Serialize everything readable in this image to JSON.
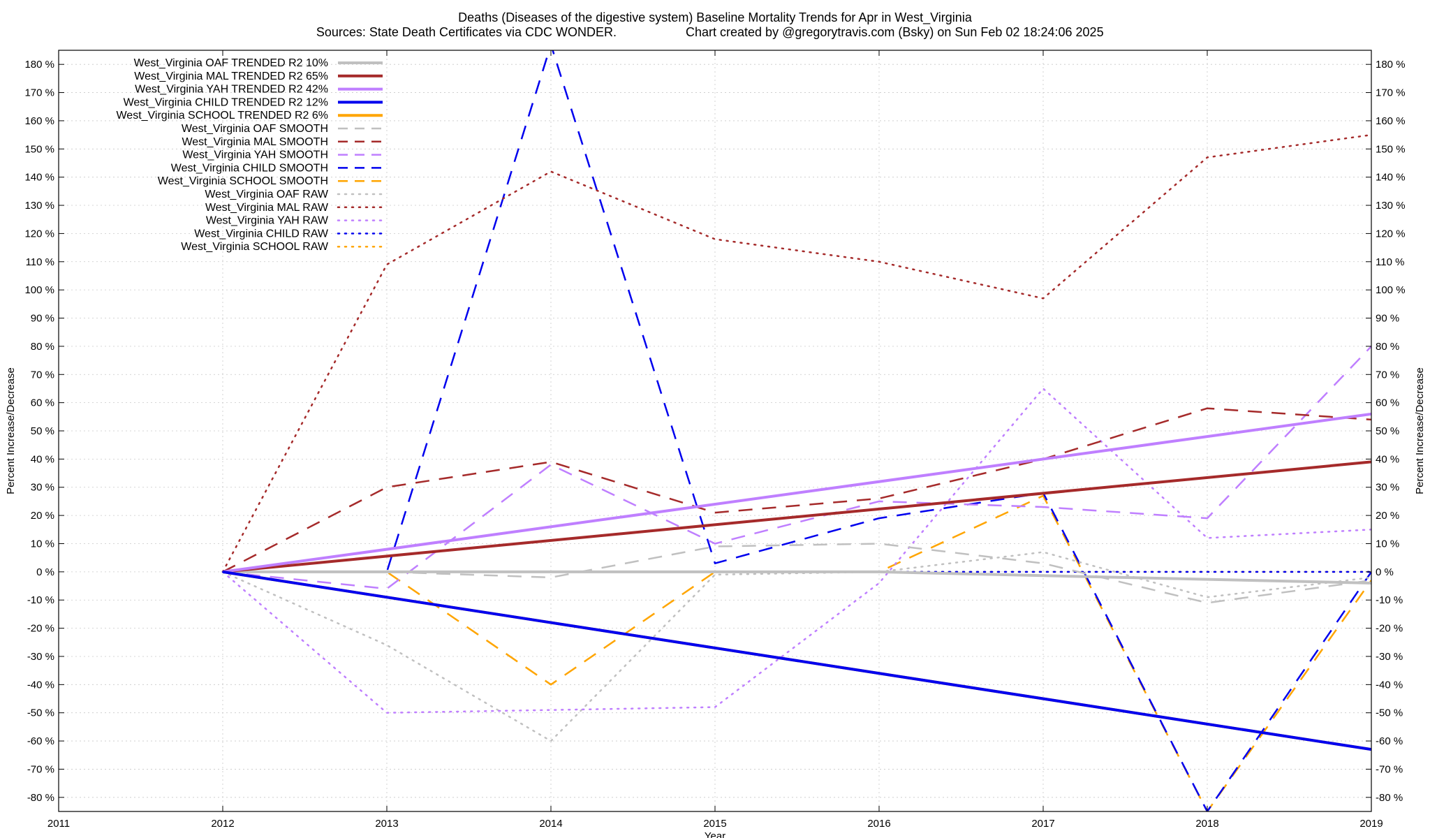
{
  "chart_data": {
    "type": "line",
    "title": "Deaths (Diseases of the digestive system)  Baseline Mortality Trends for Apr in West_Virginia",
    "subtitle_left": "Sources: State Death Certificates via CDC WONDER.",
    "subtitle_right": "Chart created by @gregorytravis.com (Bsky) on Sun Feb 02 18:24:06 2025",
    "xlabel": "Year",
    "ylabel_left": "Percent Increase/Decrease",
    "ylabel_right": "Percent Increase/Decrease",
    "xlim": [
      2011,
      2019
    ],
    "ylim": [
      -85,
      185
    ],
    "x_ticks": [
      2011,
      2012,
      2013,
      2014,
      2015,
      2016,
      2017,
      2018,
      2019
    ],
    "y_ticks": [
      180,
      170,
      160,
      150,
      140,
      130,
      120,
      110,
      100,
      90,
      80,
      70,
      60,
      50,
      40,
      30,
      20,
      10,
      0,
      -10,
      -20,
      -30,
      -40,
      -50,
      -60,
      -70,
      -80
    ],
    "y_tick_labels": [
      "180 %",
      "170 %",
      "160 %",
      "150 %",
      "140 %",
      "130 %",
      "120 %",
      "110 %",
      "100 %",
      "90 %",
      "80 %",
      "70 %",
      "60 %",
      "50 %",
      "40 %",
      "30 %",
      "20 %",
      "10 %",
      "0 %",
      "-10 %",
      "-20 %",
      "-30 %",
      "-40 %",
      "-50 %",
      "-60 %",
      "-70 %",
      "-80 %"
    ],
    "grid": true,
    "legend_position": "top-left",
    "x": [
      2012,
      2013,
      2014,
      2015,
      2016,
      2017,
      2018,
      2019
    ],
    "series": [
      {
        "name": "West_Virginia OAF TRENDED R2  10%",
        "color": "#c0c0c0",
        "style": "solid",
        "width": 4,
        "x": [
          2012,
          2016,
          2019
        ],
        "values": [
          0,
          0,
          -4
        ]
      },
      {
        "name": "West_Virginia MAL TRENDED R2  65%",
        "color": "#a52a2a",
        "style": "solid",
        "width": 4,
        "x": [
          2012,
          2019
        ],
        "values": [
          0,
          39
        ]
      },
      {
        "name": "West_Virginia YAH TRENDED R2  42%",
        "color": "#bf7fff",
        "style": "solid",
        "width": 4,
        "x": [
          2012,
          2019
        ],
        "values": [
          0,
          56
        ]
      },
      {
        "name": "West_Virginia CHILD TRENDED R2  12%",
        "color": "#0000ee",
        "style": "solid",
        "width": 4,
        "x": [
          2012,
          2019
        ],
        "values": [
          0,
          -63
        ]
      },
      {
        "name": "West_Virginia SCHOOL TRENDED R2   6%",
        "color": "#ffa500",
        "style": "solid",
        "width": 4,
        "x": [
          2012,
          2019
        ],
        "values": [
          0,
          -63
        ]
      },
      {
        "name": "West_Virginia OAF SMOOTH",
        "color": "#c0c0c0",
        "style": "dashed",
        "width": 2.5,
        "x": [
          2012,
          2013,
          2014,
          2015,
          2016,
          2017,
          2018,
          2019
        ],
        "values": [
          0,
          0,
          -2,
          9,
          10,
          3,
          -11,
          -3
        ]
      },
      {
        "name": "West_Virginia MAL SMOOTH",
        "color": "#a52a2a",
        "style": "dashed",
        "width": 2.5,
        "x": [
          2012,
          2013,
          2014,
          2015,
          2016,
          2017,
          2018,
          2019
        ],
        "values": [
          0,
          30,
          39,
          21,
          26,
          40,
          58,
          54
        ]
      },
      {
        "name": "West_Virginia YAH SMOOTH",
        "color": "#bf7fff",
        "style": "dashed",
        "width": 2.5,
        "x": [
          2012,
          2013,
          2014,
          2015,
          2016,
          2017,
          2018,
          2019
        ],
        "values": [
          0,
          -6,
          38,
          10,
          25,
          23,
          19,
          80
        ]
      },
      {
        "name": "West_Virginia CHILD SMOOTH",
        "color": "#0000ee",
        "style": "dashed",
        "width": 2.5,
        "x": [
          2012,
          2013,
          2014,
          2015,
          2016,
          2017,
          2018,
          2019
        ],
        "values": [
          0,
          0,
          187,
          3,
          19,
          28,
          -85,
          0
        ]
      },
      {
        "name": "West_Virginia SCHOOL SMOOTH",
        "color": "#ffa500",
        "style": "dashed",
        "width": 2.5,
        "x": [
          2012,
          2013,
          2014,
          2015,
          2016,
          2017,
          2018,
          2019
        ],
        "values": [
          0,
          0,
          -40,
          0,
          0,
          27,
          -85,
          -3
        ]
      },
      {
        "name": "West_Virginia OAF RAW",
        "color": "#c0c0c0",
        "style": "dotted",
        "width": 2.5,
        "x": [
          2012,
          2013,
          2014,
          2015,
          2016,
          2017,
          2018,
          2019
        ],
        "values": [
          0,
          -26,
          -60,
          -1,
          0,
          7,
          -9,
          -2
        ]
      },
      {
        "name": "West_Virginia MAL RAW",
        "color": "#a52a2a",
        "style": "dotted",
        "width": 2.5,
        "x": [
          2012,
          2013,
          2014,
          2015,
          2016,
          2017,
          2018,
          2019
        ],
        "values": [
          0,
          109,
          142,
          118,
          110,
          97,
          147,
          155
        ]
      },
      {
        "name": "West_Virginia YAH RAW",
        "color": "#bf7fff",
        "style": "dotted",
        "width": 2.5,
        "x": [
          2012,
          2013,
          2014,
          2015,
          2016,
          2017,
          2018,
          2019
        ],
        "values": [
          0,
          -50,
          -49,
          -48,
          -4,
          65,
          12,
          15
        ]
      },
      {
        "name": "West_Virginia CHILD RAW",
        "color": "#0000ee",
        "style": "dotted",
        "width": 2.5,
        "x": [
          2012,
          2013,
          2014,
          2015,
          2016,
          2017,
          2018,
          2019
        ],
        "values": [
          0,
          0,
          0,
          0,
          0,
          0,
          0,
          0
        ]
      },
      {
        "name": "West_Virginia SCHOOL RAW",
        "color": "#ffa500",
        "style": "dotted",
        "width": 2.5,
        "x": [
          2012,
          2013,
          2014,
          2015,
          2016,
          2017,
          2018,
          2019
        ],
        "values": [
          0,
          0,
          0,
          0,
          0,
          0,
          0,
          0
        ]
      }
    ],
    "legend_draw_order": [
      9,
      8,
      11,
      10,
      12,
      14,
      13,
      5,
      7,
      6,
      0,
      1,
      2,
      4,
      3
    ]
  }
}
